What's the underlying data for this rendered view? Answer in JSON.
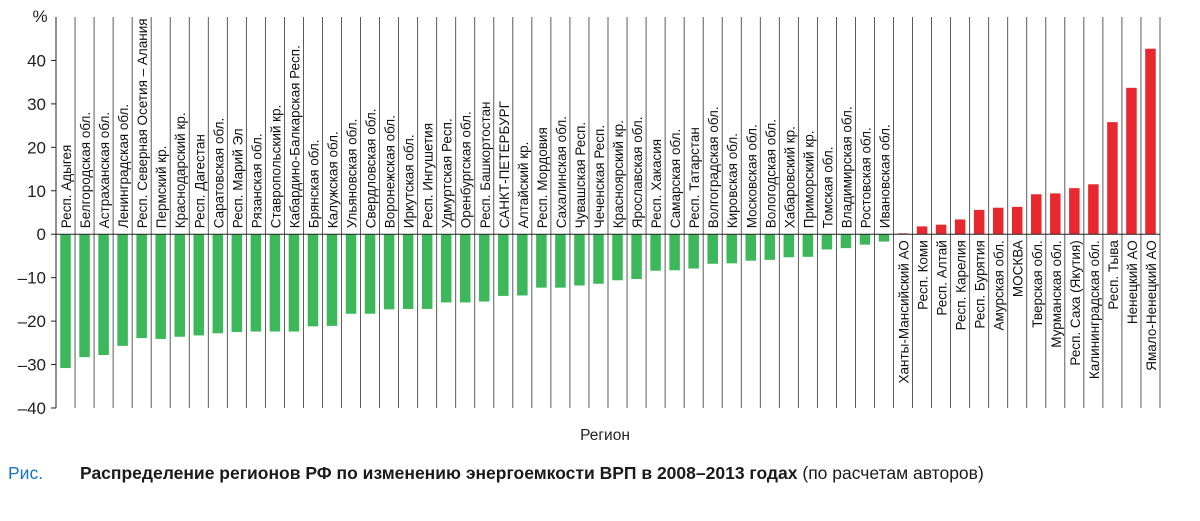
{
  "chart_data": {
    "type": "bar",
    "ylabel": "%",
    "xlabel": "Регион",
    "ylim": [
      -40,
      50
    ],
    "yticks": [
      -40,
      -30,
      -20,
      -10,
      0,
      10,
      20,
      30,
      40
    ],
    "ytick_labels": [
      "–40",
      "–30",
      "–20",
      "–10",
      "0",
      "10",
      "20",
      "30",
      "40"
    ],
    "grid": "vertical separators between categories",
    "colors": {
      "negative": "#3cb85a",
      "positive": "#e8282e",
      "axis": "#222222"
    },
    "categories": [
      "Респ. Адыгея",
      "Белгородская обл.",
      "Астраханская обл.",
      "Ленинградская обл.",
      "Респ. Северная Осетия – Алания",
      "Пермский кр.",
      "Краснодарский кр.",
      "Респ. Дагестан",
      "Саратовская обл.",
      "Респ. Марий Эл",
      "Рязанская обл.",
      "Ставропольский кр.",
      "Кабардино-Балкарская Респ.",
      "Брянская обл.",
      "Калужская обл.",
      "Ульяновская обл.",
      "Свердловская обл.",
      "Воронежская обл.",
      "Иркутская обл.",
      "Респ. Ингушетия",
      "Удмуртская Респ.",
      "Оренбургская обл.",
      "Респ. Башкортостан",
      "САНКТ-ПЕТЕРБУРГ",
      "Алтайский кр.",
      "Респ. Мордовия",
      "Сахалинская обл.",
      "Чувашская Респ.",
      "Чеченская Респ.",
      "Красноярский кр.",
      "Ярославская обл.",
      "Респ. Хакасия",
      "Самарская обл.",
      "Респ. Татарстан",
      "Волгоградская обл.",
      "Кировская обл.",
      "Московская обл.",
      "Вологодская обл.",
      "Хабаровский кр.",
      "Приморский кр.",
      "Томская обл.",
      "Владимирская обл.",
      "Ростовская обл.",
      "Ивановская обл.",
      "Ханты-Мансийский АО",
      "Респ. Коми",
      "Респ. Алтай",
      "Респ. Карелия",
      "Респ. Бурятия",
      "Амурская обл.",
      "МОСКВА",
      "Тверская обл.",
      "Мурманская обл.",
      "Респ. Саха (Якутия)",
      "Калининградская обл.",
      "Респ. Тыва",
      "Ненецкий АО",
      "Ямало-Ненецкий АО"
    ],
    "values": [
      -30.8,
      -28.3,
      -27.8,
      -25.7,
      -23.9,
      -24.1,
      -23.6,
      -23.3,
      -22.8,
      -22.5,
      -22.4,
      -22.4,
      -22.4,
      -21.2,
      -21.1,
      -18.3,
      -18.3,
      -17.3,
      -17.2,
      -17.2,
      -15.7,
      -15.7,
      -15.5,
      -14.2,
      -14.1,
      -12.3,
      -12.3,
      -11.8,
      -11.4,
      -10.6,
      -10.3,
      -8.4,
      -8.3,
      -7.9,
      -6.8,
      -6.7,
      -6.1,
      -5.9,
      -5.3,
      -5.2,
      -3.5,
      -3.2,
      -2.4,
      -1.7,
      0.2,
      1.8,
      2.2,
      3.4,
      5.6,
      6.1,
      6.3,
      9.2,
      9.4,
      10.6,
      11.5,
      25.8,
      33.7,
      42.7
    ]
  },
  "caption": {
    "label": "Рис.",
    "title": "Распределение регионов РФ по изменению энергоемкости ВРП в 2008–2013 годах",
    "note": " (по расчетам авторов)"
  }
}
